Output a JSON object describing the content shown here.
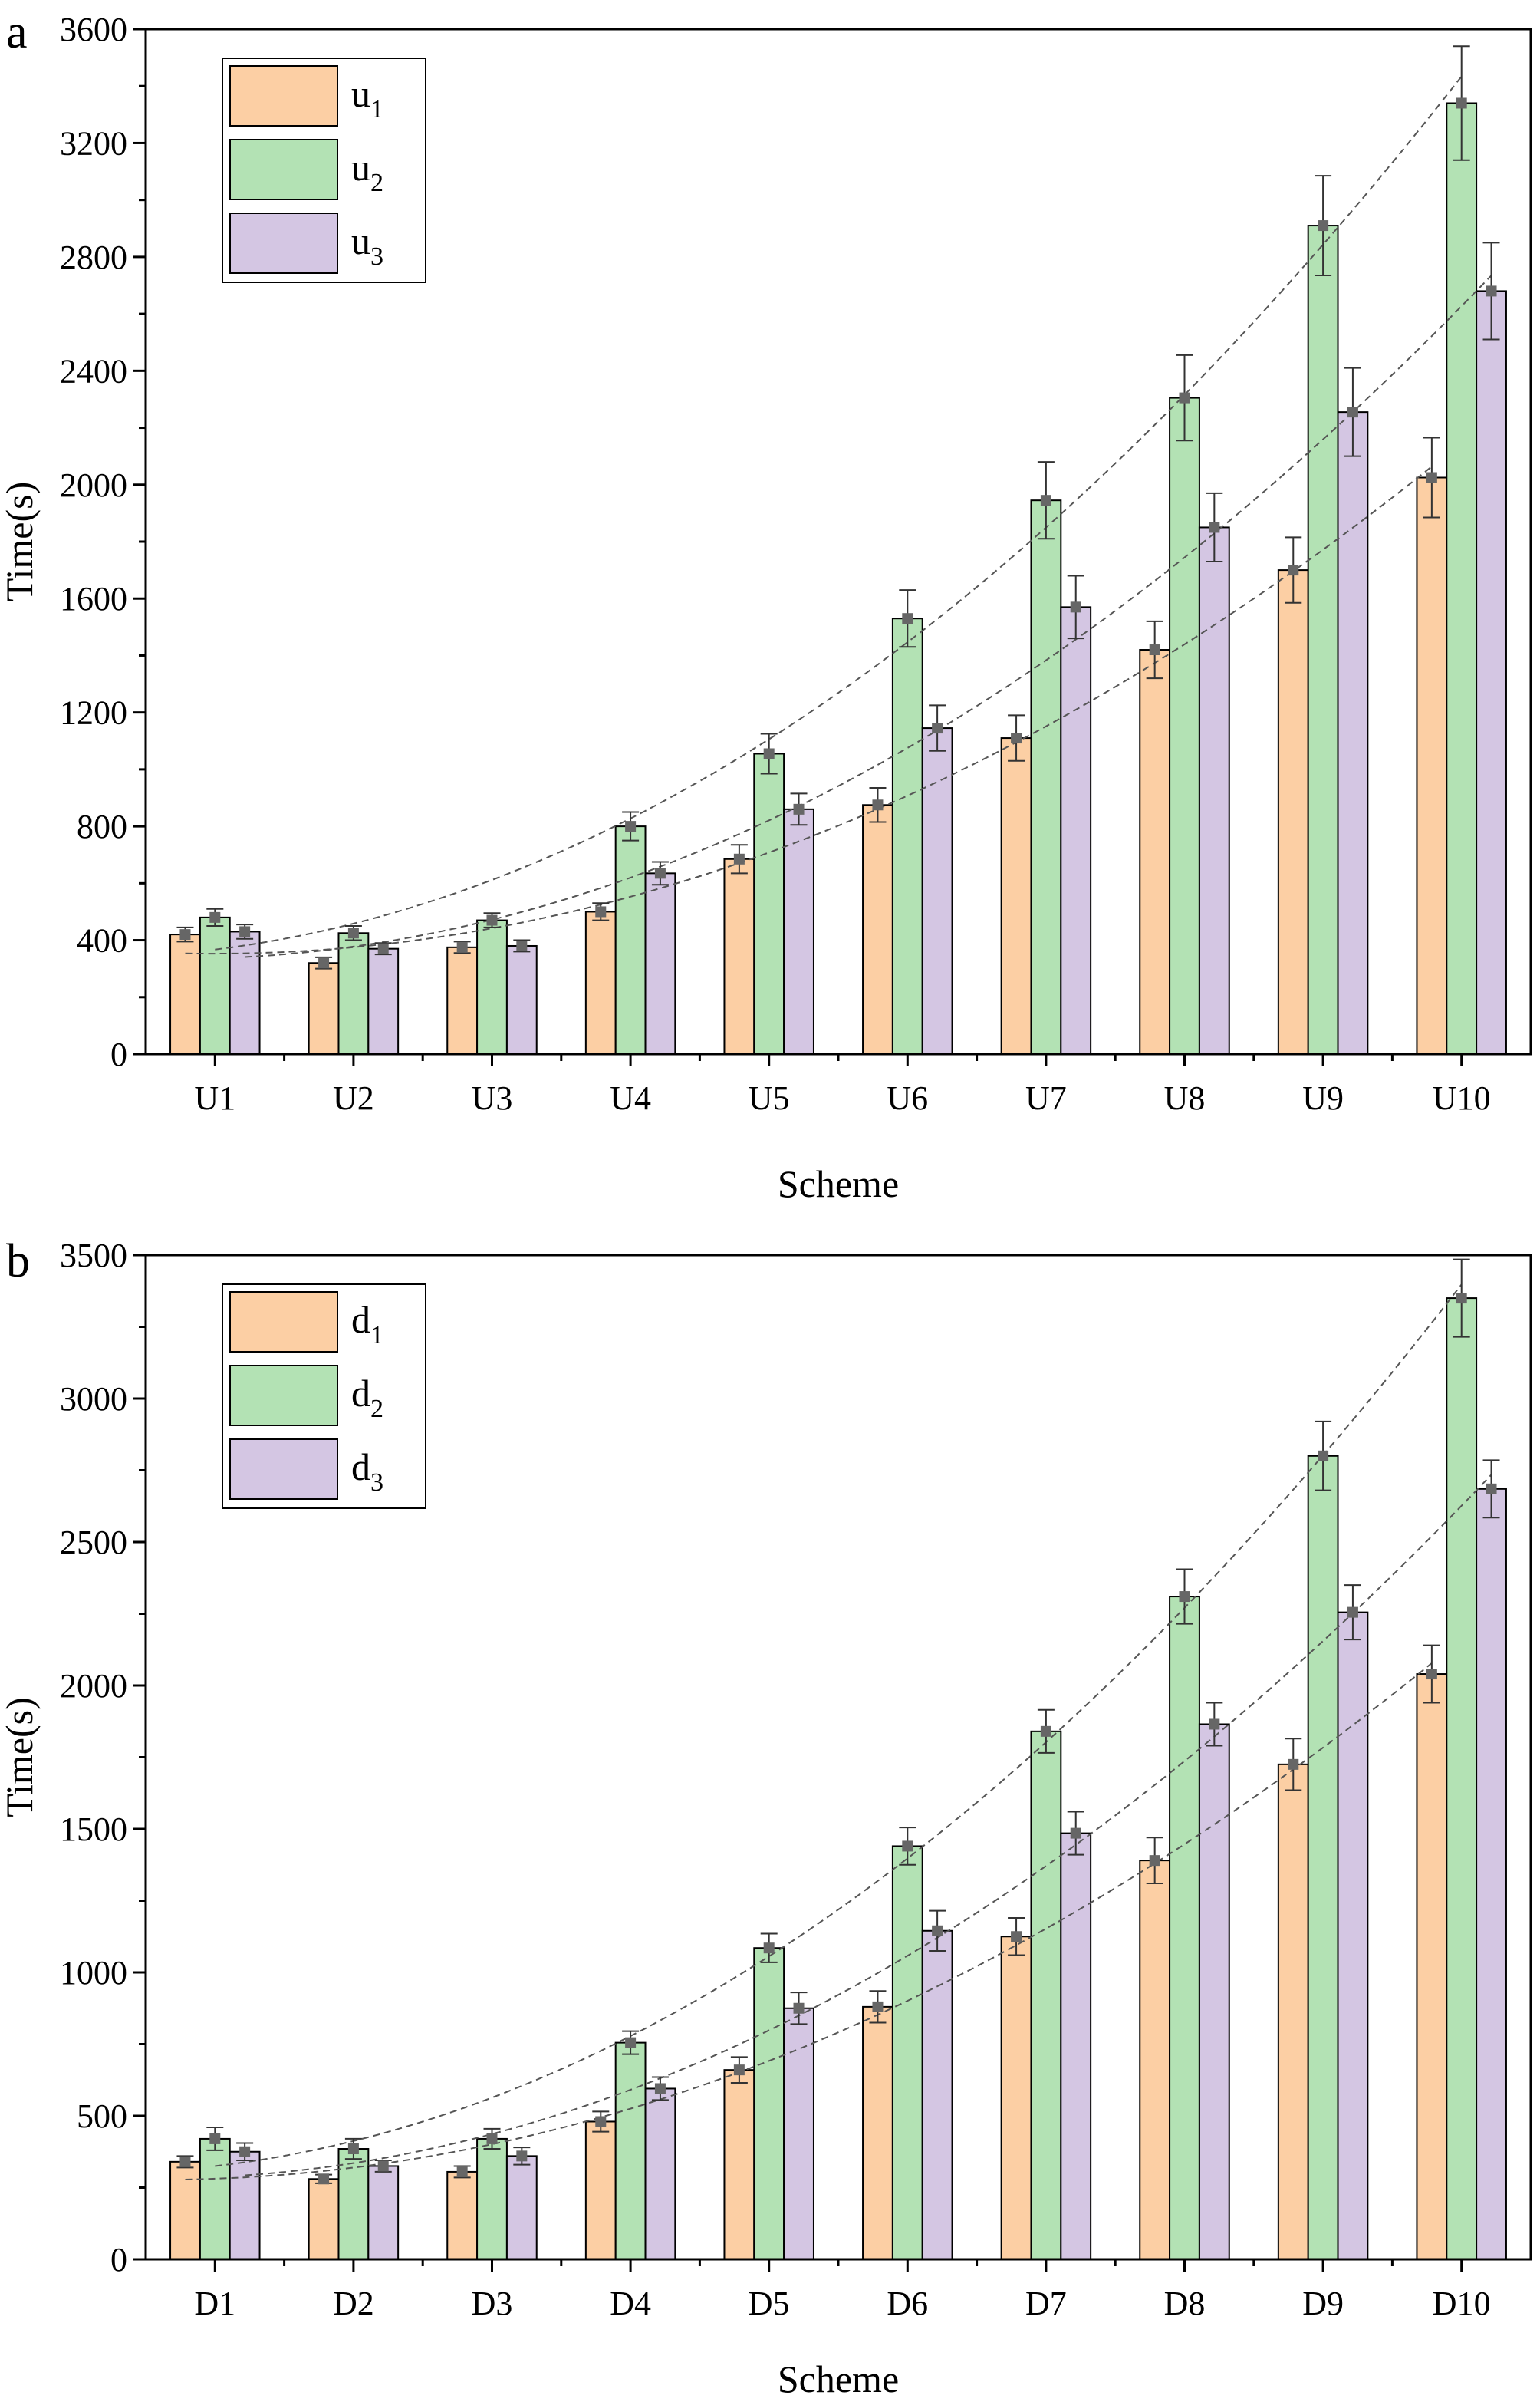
{
  "figure": {
    "colors": {
      "series1": "#FCCFA4",
      "series2": "#B3E2B4",
      "series3": "#D4C6E3",
      "marker": "#666666",
      "frame": "#000000",
      "trend": "#555555"
    },
    "panel_labels": [
      "a",
      "b"
    ]
  },
  "chart_data": [
    {
      "type": "bar",
      "panel": "a",
      "title": "",
      "xlabel": "Scheme",
      "ylabel": "Time(s)",
      "ylim": [
        0,
        3600
      ],
      "yticks": [
        0,
        400,
        800,
        1200,
        1600,
        2000,
        2400,
        2800,
        3200,
        3600
      ],
      "ytick_labels": [
        "0",
        "400",
        "800",
        "1200",
        "1600",
        "2000",
        "2400",
        "2800",
        "3200",
        "3600"
      ],
      "categories": [
        "U1",
        "U2",
        "U3",
        "U4",
        "U5",
        "U6",
        "U7",
        "U8",
        "U9",
        "U10"
      ],
      "legend_position": "top-left",
      "error_bars": true,
      "trend_lines": "dashed quadratic fit per series",
      "series": [
        {
          "name": "u1",
          "base": "u",
          "sub": "1",
          "values": [
            420,
            320,
            375,
            500,
            685,
            875,
            1110,
            1420,
            1700,
            2025
          ],
          "errors": [
            25,
            20,
            20,
            30,
            50,
            60,
            80,
            100,
            115,
            140
          ]
        },
        {
          "name": "u2",
          "base": "u",
          "sub": "2",
          "values": [
            480,
            425,
            470,
            800,
            1055,
            1530,
            1945,
            2305,
            2910,
            3340
          ],
          "errors": [
            30,
            25,
            25,
            50,
            70,
            100,
            135,
            150,
            175,
            200
          ]
        },
        {
          "name": "u3",
          "base": "u",
          "sub": "3",
          "values": [
            430,
            370,
            380,
            635,
            860,
            1145,
            1570,
            1850,
            2255,
            2680
          ],
          "errors": [
            25,
            20,
            20,
            40,
            55,
            80,
            110,
            120,
            155,
            170
          ]
        }
      ]
    },
    {
      "type": "bar",
      "panel": "b",
      "title": "",
      "xlabel": "Scheme",
      "ylabel": "Time(s)",
      "ylim": [
        0,
        3500
      ],
      "yticks": [
        0,
        500,
        1000,
        1500,
        2000,
        2500,
        3000,
        3500
      ],
      "ytick_labels": [
        "0",
        "500",
        "1000",
        "1500",
        "2000",
        "2500",
        "3000",
        "3500"
      ],
      "categories": [
        "D1",
        "D2",
        "D3",
        "D4",
        "D5",
        "D6",
        "D7",
        "D8",
        "D9",
        "D10"
      ],
      "legend_position": "top-left",
      "error_bars": true,
      "trend_lines": "dashed quadratic fit per series",
      "series": [
        {
          "name": "d1",
          "base": "d",
          "sub": "1",
          "values": [
            340,
            280,
            305,
            480,
            660,
            880,
            1125,
            1390,
            1725,
            2040
          ],
          "errors": [
            20,
            15,
            20,
            35,
            45,
            55,
            65,
            80,
            90,
            100
          ]
        },
        {
          "name": "d2",
          "base": "d",
          "sub": "2",
          "values": [
            420,
            385,
            420,
            755,
            1085,
            1440,
            1840,
            2310,
            2800,
            3350
          ],
          "errors": [
            40,
            35,
            35,
            40,
            50,
            65,
            75,
            95,
            120,
            135
          ]
        },
        {
          "name": "d3",
          "base": "d",
          "sub": "3",
          "values": [
            375,
            325,
            360,
            595,
            875,
            1145,
            1485,
            1865,
            2255,
            2685
          ],
          "errors": [
            30,
            20,
            30,
            40,
            55,
            70,
            75,
            75,
            95,
            100
          ]
        }
      ]
    }
  ]
}
